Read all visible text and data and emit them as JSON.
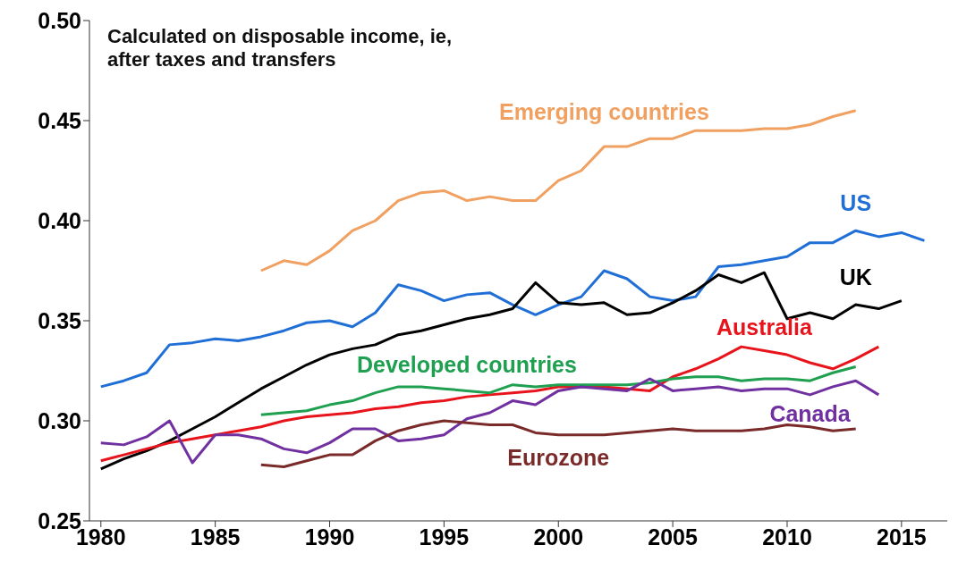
{
  "chart_data": {
    "type": "line",
    "annotations": [
      "Calculated on disposable income, ie, after taxes and transfers"
    ],
    "xlim": [
      1979.5,
      2017
    ],
    "xticks": [
      1980,
      1985,
      1990,
      1995,
      2000,
      2005,
      2010,
      2015
    ],
    "ylim": [
      0.25,
      0.5
    ],
    "yticks": [
      {
        "value": 0.25,
        "label": "0.25"
      },
      {
        "value": 0.3,
        "label": "0.30"
      },
      {
        "value": 0.35,
        "label": "0.35"
      },
      {
        "value": 0.4,
        "label": "0.40"
      },
      {
        "value": 0.45,
        "label": "0.45"
      },
      {
        "value": 0.5,
        "label": "0.50"
      }
    ],
    "grid": false,
    "legend": false,
    "marker": "none",
    "line_style": "solid",
    "series": [
      {
        "name": "Emerging countries",
        "color": "#f0a060",
        "x": [
          1987,
          1988,
          1989,
          1990,
          1991,
          1992,
          1993,
          1994,
          1995,
          1996,
          1997,
          1998,
          1999,
          2000,
          2001,
          2002,
          2003,
          2004,
          2005,
          2006,
          2007,
          2008,
          2009,
          2010,
          2011,
          2012,
          2013
        ],
        "values": [
          0.375,
          0.38,
          0.378,
          0.385,
          0.395,
          0.4,
          0.41,
          0.414,
          0.415,
          0.41,
          0.412,
          0.41,
          0.41,
          0.42,
          0.425,
          0.437,
          0.437,
          0.441,
          0.441,
          0.445,
          0.445,
          0.445,
          0.446,
          0.446,
          0.448,
          0.452,
          0.455
        ]
      },
      {
        "name": "US",
        "color": "#1f6fd6",
        "x": [
          1980,
          1981,
          1982,
          1983,
          1984,
          1985,
          1986,
          1987,
          1988,
          1989,
          1990,
          1991,
          1992,
          1993,
          1994,
          1995,
          1996,
          1997,
          1998,
          1999,
          2000,
          2001,
          2002,
          2003,
          2004,
          2005,
          2006,
          2007,
          2008,
          2009,
          2010,
          2011,
          2012,
          2013,
          2014,
          2015,
          2016
        ],
        "values": [
          0.317,
          0.32,
          0.324,
          0.338,
          0.339,
          0.341,
          0.34,
          0.342,
          0.345,
          0.349,
          0.35,
          0.347,
          0.354,
          0.368,
          0.365,
          0.36,
          0.363,
          0.364,
          0.358,
          0.353,
          0.358,
          0.362,
          0.375,
          0.371,
          0.362,
          0.36,
          0.362,
          0.377,
          0.378,
          0.38,
          0.382,
          0.389,
          0.389,
          0.395,
          0.392,
          0.394,
          0.39
        ]
      },
      {
        "name": "UK",
        "color": "#000000",
        "x": [
          1980,
          1981,
          1982,
          1983,
          1984,
          1985,
          1986,
          1987,
          1988,
          1989,
          1990,
          1991,
          1992,
          1993,
          1994,
          1995,
          1996,
          1997,
          1998,
          1999,
          2000,
          2001,
          2002,
          2003,
          2004,
          2005,
          2006,
          2007,
          2008,
          2009,
          2010,
          2011,
          2012,
          2013,
          2014,
          2015
        ],
        "values": [
          0.276,
          0.281,
          0.285,
          0.29,
          0.296,
          0.302,
          0.309,
          0.316,
          0.322,
          0.328,
          0.333,
          0.336,
          0.338,
          0.343,
          0.345,
          0.348,
          0.351,
          0.353,
          0.356,
          0.369,
          0.359,
          0.358,
          0.359,
          0.353,
          0.354,
          0.359,
          0.365,
          0.373,
          0.369,
          0.374,
          0.351,
          0.354,
          0.351,
          0.358,
          0.356,
          0.36
        ]
      },
      {
        "name": "Australia",
        "color": "#e8141c",
        "x": [
          1980,
          1981,
          1982,
          1983,
          1984,
          1985,
          1986,
          1987,
          1988,
          1989,
          1990,
          1991,
          1992,
          1993,
          1994,
          1995,
          1996,
          1997,
          1998,
          1999,
          2000,
          2001,
          2002,
          2003,
          2004,
          2005,
          2006,
          2007,
          2008,
          2009,
          2010,
          2011,
          2012,
          2013,
          2014
        ],
        "values": [
          0.28,
          0.283,
          0.286,
          0.289,
          0.291,
          0.293,
          0.295,
          0.297,
          0.3,
          0.302,
          0.303,
          0.304,
          0.306,
          0.307,
          0.309,
          0.31,
          0.312,
          0.313,
          0.314,
          0.315,
          0.317,
          0.317,
          0.317,
          0.316,
          0.315,
          0.322,
          0.326,
          0.331,
          0.337,
          0.335,
          0.333,
          0.329,
          0.326,
          0.331,
          0.337
        ]
      },
      {
        "name": "Developed countries",
        "color": "#1fa050",
        "x": [
          1987,
          1988,
          1989,
          1990,
          1991,
          1992,
          1993,
          1994,
          1995,
          1996,
          1997,
          1998,
          1999,
          2000,
          2001,
          2002,
          2003,
          2004,
          2005,
          2006,
          2007,
          2008,
          2009,
          2010,
          2011,
          2012,
          2013
        ],
        "values": [
          0.303,
          0.304,
          0.305,
          0.308,
          0.31,
          0.314,
          0.317,
          0.317,
          0.316,
          0.315,
          0.314,
          0.318,
          0.317,
          0.318,
          0.318,
          0.318,
          0.318,
          0.319,
          0.321,
          0.322,
          0.322,
          0.32,
          0.321,
          0.321,
          0.32,
          0.324,
          0.327
        ]
      },
      {
        "name": "Canada",
        "color": "#7030a0",
        "x": [
          1980,
          1981,
          1982,
          1983,
          1984,
          1985,
          1986,
          1987,
          1988,
          1989,
          1990,
          1991,
          1992,
          1993,
          1994,
          1995,
          1996,
          1997,
          1998,
          1999,
          2000,
          2001,
          2002,
          2003,
          2004,
          2005,
          2006,
          2007,
          2008,
          2009,
          2010,
          2011,
          2012,
          2013,
          2014
        ],
        "values": [
          0.289,
          0.288,
          0.292,
          0.3,
          0.279,
          0.293,
          0.293,
          0.291,
          0.286,
          0.284,
          0.289,
          0.296,
          0.296,
          0.29,
          0.291,
          0.293,
          0.301,
          0.304,
          0.31,
          0.308,
          0.315,
          0.317,
          0.316,
          0.315,
          0.321,
          0.315,
          0.316,
          0.317,
          0.315,
          0.316,
          0.316,
          0.313,
          0.317,
          0.32,
          0.313
        ]
      },
      {
        "name": "Eurozone",
        "color": "#7b2a2a",
        "x": [
          1987,
          1988,
          1989,
          1990,
          1991,
          1992,
          1993,
          1994,
          1995,
          1996,
          1997,
          1998,
          1999,
          2000,
          2001,
          2002,
          2003,
          2004,
          2005,
          2006,
          2007,
          2008,
          2009,
          2010,
          2011,
          2012,
          2013
        ],
        "values": [
          0.278,
          0.277,
          0.28,
          0.283,
          0.283,
          0.29,
          0.295,
          0.298,
          0.3,
          0.299,
          0.298,
          0.298,
          0.294,
          0.293,
          0.293,
          0.293,
          0.294,
          0.295,
          0.296,
          0.295,
          0.295,
          0.295,
          0.296,
          0.298,
          0.297,
          0.295,
          0.296
        ]
      }
    ]
  }
}
